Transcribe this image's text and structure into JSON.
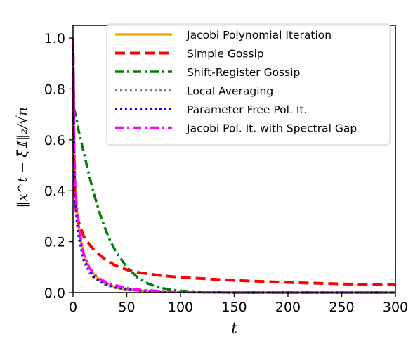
{
  "chart_data": {
    "type": "line",
    "xlabel": "t",
    "ylabel": "‖x^t − ξ̄𝟙‖₂/√n",
    "xlim": [
      0,
      300
    ],
    "ylim": [
      0,
      1.05
    ],
    "x_ticks": [
      "0",
      "50",
      "100",
      "150",
      "200",
      "250",
      "300"
    ],
    "y_ticks": [
      "0.0",
      "0.2",
      "0.4",
      "0.6",
      "0.8",
      "1.0"
    ],
    "grid": false,
    "legend_position": "top-right",
    "series": [
      {
        "name": "Jacobi Polynomial Iteration",
        "color": "#ffa500",
        "style": "solid",
        "points": [
          [
            0,
            1.0
          ],
          [
            1,
            0.55
          ],
          [
            2,
            0.4
          ],
          [
            4,
            0.3
          ],
          [
            6,
            0.24
          ],
          [
            8,
            0.19
          ],
          [
            10,
            0.15
          ],
          [
            15,
            0.1
          ],
          [
            20,
            0.07
          ],
          [
            25,
            0.05
          ],
          [
            30,
            0.035
          ],
          [
            40,
            0.02
          ],
          [
            50,
            0.012
          ],
          [
            60,
            0.008
          ],
          [
            80,
            0.004
          ],
          [
            100,
            0.002
          ],
          [
            150,
            0.0005
          ],
          [
            200,
            0.0
          ],
          [
            300,
            0.0
          ]
        ]
      },
      {
        "name": "Simple Gossip",
        "color": "#ff0000",
        "style": "dashed",
        "points": [
          [
            0,
            1.0
          ],
          [
            1,
            0.46
          ],
          [
            2,
            0.36
          ],
          [
            3,
            0.32
          ],
          [
            5,
            0.28
          ],
          [
            10,
            0.22
          ],
          [
            15,
            0.19
          ],
          [
            20,
            0.165
          ],
          [
            30,
            0.13
          ],
          [
            40,
            0.105
          ],
          [
            50,
            0.09
          ],
          [
            60,
            0.08
          ],
          [
            80,
            0.068
          ],
          [
            100,
            0.06
          ],
          [
            150,
            0.048
          ],
          [
            200,
            0.04
          ],
          [
            250,
            0.034
          ],
          [
            300,
            0.03
          ]
        ]
      },
      {
        "name": "Shift-Register Gossip",
        "color": "#008000",
        "style": "dashdot",
        "points": [
          [
            0,
            1.0
          ],
          [
            1,
            0.72
          ],
          [
            3,
            0.69
          ],
          [
            5,
            0.64
          ],
          [
            10,
            0.55
          ],
          [
            15,
            0.46
          ],
          [
            20,
            0.38
          ],
          [
            25,
            0.31
          ],
          [
            30,
            0.25
          ],
          [
            35,
            0.2
          ],
          [
            40,
            0.16
          ],
          [
            50,
            0.1
          ],
          [
            60,
            0.06
          ],
          [
            70,
            0.035
          ],
          [
            80,
            0.02
          ],
          [
            90,
            0.012
          ],
          [
            100,
            0.007
          ],
          [
            120,
            0.003
          ],
          [
            150,
            0.0
          ],
          [
            300,
            0.0
          ]
        ]
      },
      {
        "name": "Local Averaging",
        "color": "#808080",
        "style": "dotted",
        "points": [
          [
            0,
            1.0
          ],
          [
            1,
            0.5
          ],
          [
            2,
            0.35
          ],
          [
            4,
            0.26
          ],
          [
            6,
            0.2
          ],
          [
            8,
            0.16
          ],
          [
            10,
            0.12
          ],
          [
            15,
            0.08
          ],
          [
            20,
            0.055
          ],
          [
            30,
            0.03
          ],
          [
            40,
            0.018
          ],
          [
            60,
            0.008
          ],
          [
            80,
            0.004
          ],
          [
            100,
            0.002
          ],
          [
            150,
            0.0
          ],
          [
            300,
            0.0
          ]
        ]
      },
      {
        "name": "Parameter Free Pol. It.",
        "color": "#0000ff",
        "style": "dotted",
        "points": [
          [
            0,
            1.0
          ],
          [
            1,
            0.52
          ],
          [
            2,
            0.37
          ],
          [
            4,
            0.27
          ],
          [
            6,
            0.21
          ],
          [
            8,
            0.17
          ],
          [
            10,
            0.13
          ],
          [
            15,
            0.09
          ],
          [
            20,
            0.06
          ],
          [
            30,
            0.035
          ],
          [
            40,
            0.02
          ],
          [
            60,
            0.009
          ],
          [
            80,
            0.004
          ],
          [
            100,
            0.002
          ],
          [
            150,
            0.0
          ],
          [
            300,
            0.0
          ]
        ]
      },
      {
        "name": "Jacobi Pol. It. with Spectral Gap",
        "color": "#ff00ff",
        "style": "dashdot",
        "points": [
          [
            0,
            1.0
          ],
          [
            1,
            0.6
          ],
          [
            2,
            0.42
          ],
          [
            4,
            0.31
          ],
          [
            6,
            0.24
          ],
          [
            8,
            0.19
          ],
          [
            10,
            0.15
          ],
          [
            15,
            0.1
          ],
          [
            20,
            0.07
          ],
          [
            25,
            0.055
          ],
          [
            30,
            0.042
          ],
          [
            40,
            0.028
          ],
          [
            50,
            0.018
          ],
          [
            60,
            0.012
          ],
          [
            80,
            0.006
          ],
          [
            100,
            0.003
          ],
          [
            150,
            0.0
          ],
          [
            300,
            0.0
          ]
        ]
      }
    ]
  }
}
